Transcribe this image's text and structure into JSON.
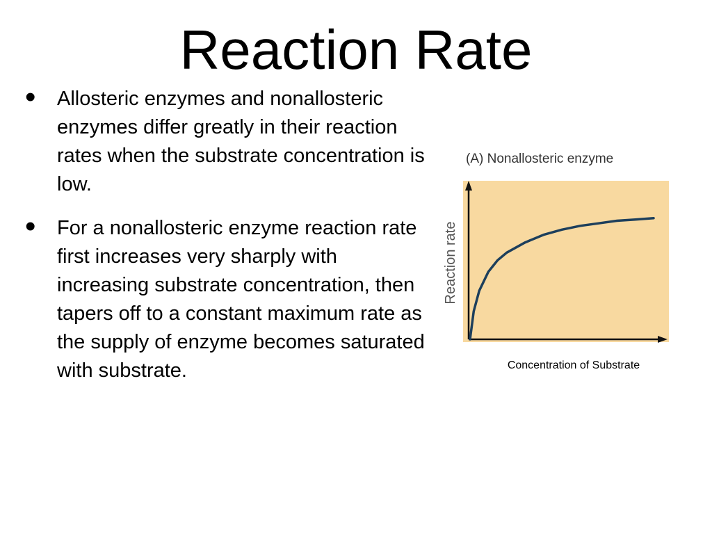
{
  "slide": {
    "title": "Reaction Rate",
    "bullets": [
      "Allosteric enzymes and nonallosteric enzymes differ greatly in their reaction rates when the substrate concentration is low.",
      "For a nonallosteric enzyme reaction rate first increases very sharply with increasing substrate concentration, then tapers off to a constant maximum rate as the supply of enzyme becomes saturated with substrate."
    ],
    "bullet_glyph": "•"
  },
  "figure": {
    "panel_title": "(A)  Nonallosteric enzyme",
    "caption": "Concentration of Substrate",
    "colors": {
      "background": "#f8d9a0",
      "curve": "#1d3f5c",
      "axis": "#111111",
      "label": "#555555"
    }
  },
  "chart_data": {
    "type": "line",
    "title": "(A)  Nonallosteric enzyme",
    "xlabel": "Concentration of Substrate",
    "ylabel": "Reaction rate",
    "grid": false,
    "ticks": false,
    "series": [
      {
        "x": [
          0,
          0.02,
          0.05,
          0.1,
          0.15,
          0.2,
          0.3,
          0.4,
          0.5,
          0.6,
          0.7,
          0.8,
          0.9,
          1.0
        ],
        "values": [
          0,
          0.22,
          0.38,
          0.53,
          0.62,
          0.68,
          0.76,
          0.82,
          0.86,
          0.89,
          0.91,
          0.93,
          0.94,
          0.95
        ]
      }
    ],
    "xlim": [
      0,
      1
    ],
    "ylim": [
      0,
      1.2
    ]
  }
}
